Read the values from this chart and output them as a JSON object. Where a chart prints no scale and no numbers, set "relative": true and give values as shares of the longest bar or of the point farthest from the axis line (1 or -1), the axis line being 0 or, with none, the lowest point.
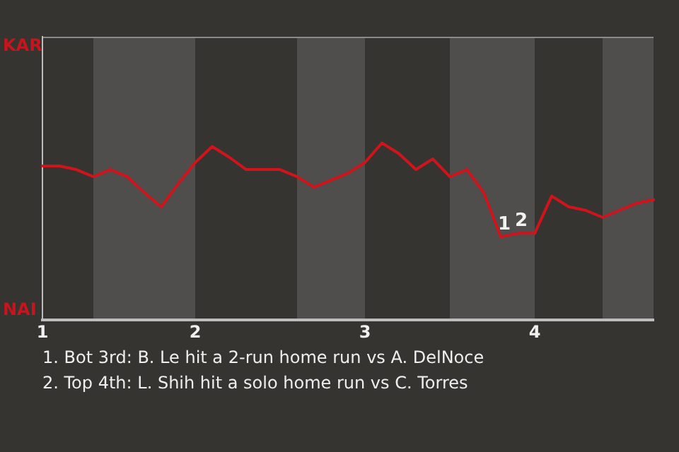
{
  "chart_data": {
    "type": "line",
    "relative": true,
    "categories": [
      "1",
      null,
      null,
      null,
      null,
      null,
      null,
      null,
      null,
      "2",
      null,
      null,
      null,
      null,
      null,
      null,
      null,
      null,
      null,
      "3",
      null,
      null,
      null,
      null,
      null,
      null,
      null,
      null,
      null,
      "4",
      null,
      null,
      null,
      null,
      null,
      null,
      null
    ],
    "series": [
      {
        "color": "#d0141c",
        "values": [
          0.87,
          0.87,
          0.85,
          0.81,
          0.85,
          0.81,
          0.72,
          0.64,
          0.77,
          0.89,
          0.98,
          0.92,
          0.85,
          0.85,
          0.85,
          0.81,
          0.75,
          0.79,
          0.83,
          0.89,
          1,
          0.94,
          0.85,
          0.91,
          0.81,
          0.85,
          0.72,
          0.47,
          0.49,
          0.49,
          0.7,
          0.64,
          0.62,
          0.58,
          0.62,
          0.66,
          0.68
        ]
      }
    ],
    "legend": false,
    "marker": "none",
    "line_style": "solid",
    "annotations": [
      "KAR",
      "NAI",
      {
        "text": "1",
        "y": 0.47
      },
      {
        "text": "2",
        "y": 0.49
      },
      "1. Bot 3rd: B. Le hit a 2-run home run vs A. DelNoce",
      "2. Top 4th: L. Shih hit a solo home run vs C. Torres"
    ]
  }
}
